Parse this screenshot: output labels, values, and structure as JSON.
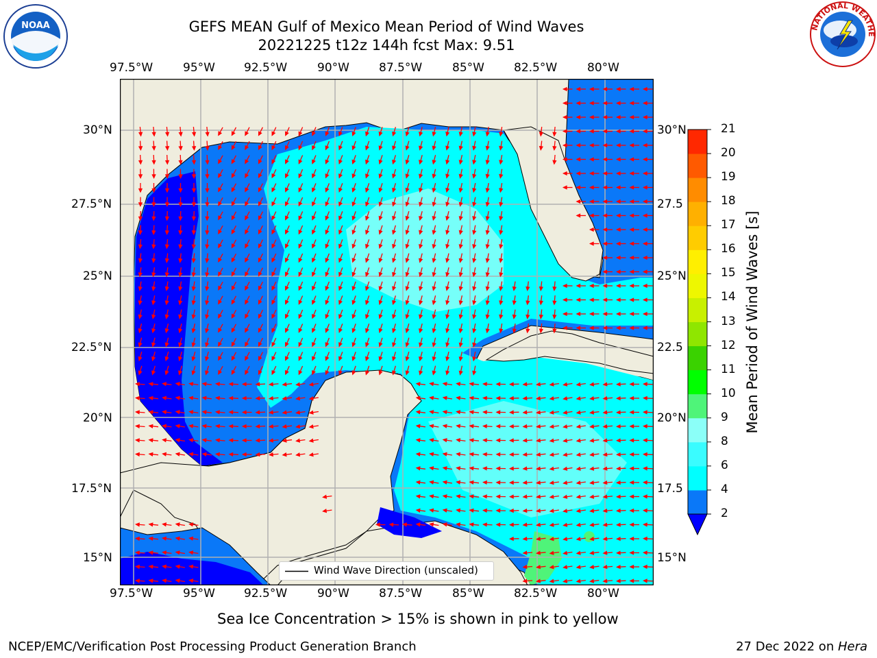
{
  "title": {
    "line1": "GEFS MEAN Gulf of Mexico Mean Period of Wind Waves",
    "line2": "20221225 t12z 144h fcst   Max: 9.51"
  },
  "map": {
    "lon_labels": [
      "97.5°W",
      "95°W",
      "92.5°W",
      "90°W",
      "87.5°W",
      "85°W",
      "82.5°W",
      "80°W"
    ],
    "lat_labels_left": [
      "30°N",
      "27.5°N",
      "25°N",
      "22.5°N",
      "20°N",
      "17.5°N",
      "15°N"
    ],
    "lat_labels_right": [
      "30°N",
      "27.5",
      "25°N",
      "22.5",
      "20°N",
      "17.5",
      "15°N"
    ],
    "legend_label": "Wind Wave Direction (unscaled)",
    "colors": {
      "land": "#efedde",
      "blue_dark": "#0000ff",
      "blue": "#0a78f8",
      "cyan": "#00ffff",
      "aqua": "#3afcff",
      "pale": "#8bfff8",
      "green": "#4ff479",
      "arrow": "#ff0000"
    }
  },
  "colorbar": {
    "label": "Mean Period of Wind Waves [s]",
    "ticks": [
      "2",
      "4",
      "6",
      "8",
      "9",
      "10",
      "11",
      "12",
      "13",
      "14",
      "15",
      "16",
      "17",
      "18",
      "19",
      "20",
      "21"
    ],
    "colors": [
      "#0a78f8",
      "#00ffff",
      "#3afcff",
      "#8bfff8",
      "#4ff479",
      "#00ff00",
      "#3ad200",
      "#8fe600",
      "#c8f000",
      "#eef700",
      "#ffef00",
      "#ffcc00",
      "#ffb000",
      "#ff8c00",
      "#ff5a00",
      "#ff2800",
      "#ff0000"
    ],
    "under_color": "#0000ff"
  },
  "note": "Sea Ice Concentration > 15% is shown in pink to yellow",
  "footer": {
    "left": "NCEP/EMC/Verification Post Processing Product Generation Branch",
    "right_prefix": "27 Dec 2022 on ",
    "right_italic": "Hera"
  },
  "logos": {
    "noaa_text": "NOAA",
    "nws_text": "NATIONAL WEATHER SERVICE"
  }
}
